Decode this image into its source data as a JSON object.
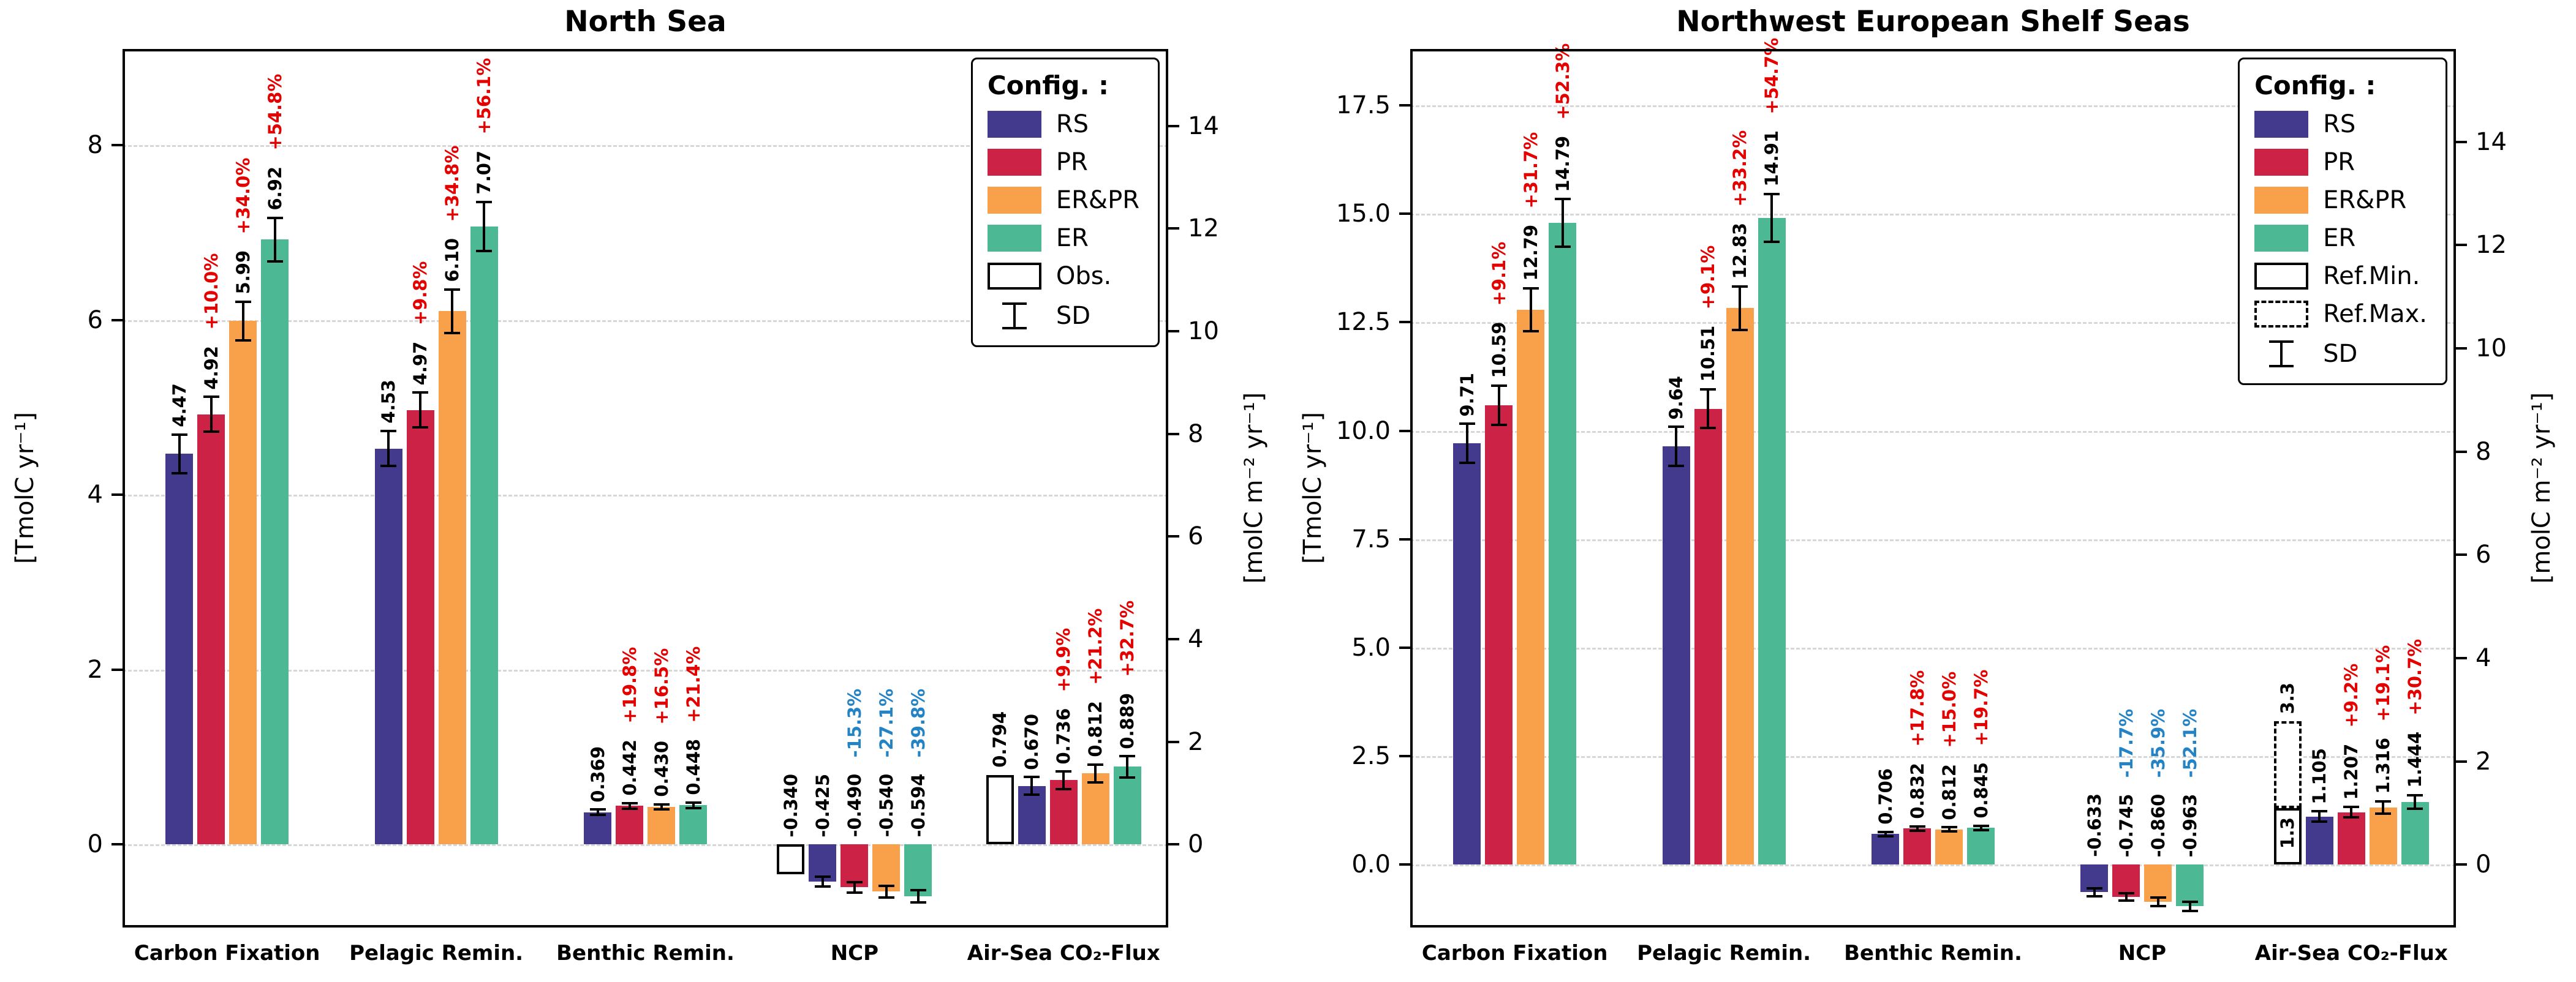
{
  "figure": {
    "background": "#ffffff",
    "colors": {
      "RS": "#433A8E",
      "PR": "#CB2245",
      "ER&PR": "#F9A04A",
      "ER": "#4CB894",
      "positive_pct": "#E50000",
      "negative_pct": "#2383C4",
      "grid": "#d7d7d7",
      "axis": "#000000"
    }
  },
  "chart_data": [
    {
      "type": "bar",
      "title": "North Sea",
      "ylabel_left": "[TmolC yr⁻¹]",
      "ylabel_right": "[molC m⁻² yr⁻¹]",
      "grid": "horizontal-dashed",
      "legend_position": "upper-right",
      "axis_left": {
        "min": -0.95,
        "max": 9.1,
        "ticks": [
          0,
          2,
          4,
          6,
          8
        ],
        "labels": [
          "0",
          "2",
          "4",
          "6",
          "8"
        ]
      },
      "axis_right": {
        "min": -1.618,
        "max": 15.5,
        "ticks": [
          0,
          2,
          4,
          6,
          8,
          10,
          12,
          14
        ],
        "labels": [
          "0",
          "2",
          "4",
          "6",
          "8",
          "10",
          "12",
          "14"
        ]
      },
      "legend": {
        "header": "Config. :",
        "entries": [
          {
            "swatch": "RS",
            "label": "RS"
          },
          {
            "swatch": "PR",
            "label": "PR"
          },
          {
            "swatch": "ER&PR",
            "label": "ER&PR"
          },
          {
            "swatch": "ER",
            "label": "ER"
          },
          {
            "swatch": "outline-solid",
            "label": "Obs."
          },
          {
            "swatch": "sd",
            "label": "SD"
          }
        ]
      },
      "groups": [
        {
          "category": "Carbon Fixation",
          "bars": [
            {
              "config": "RS",
              "value": 4.47,
              "label": "4.47",
              "sd": 0.22
            },
            {
              "config": "PR",
              "value": 4.92,
              "label": "4.92",
              "sd": 0.2,
              "pct": "+10.0%"
            },
            {
              "config": "ER&PR",
              "value": 5.99,
              "label": "5.99",
              "sd": 0.22,
              "pct": "+34.0%"
            },
            {
              "config": "ER",
              "value": 6.92,
              "label": "6.92",
              "sd": 0.25,
              "pct": "+54.8%"
            }
          ]
        },
        {
          "category": "Pelagic Remin.",
          "bars": [
            {
              "config": "RS",
              "value": 4.53,
              "label": "4.53",
              "sd": 0.2
            },
            {
              "config": "PR",
              "value": 4.97,
              "label": "4.97",
              "sd": 0.2,
              "pct": "+9.8%"
            },
            {
              "config": "ER&PR",
              "value": 6.1,
              "label": "6.10",
              "sd": 0.25,
              "pct": "+34.8%"
            },
            {
              "config": "ER",
              "value": 7.07,
              "label": "7.07",
              "sd": 0.28,
              "pct": "+56.1%"
            }
          ]
        },
        {
          "category": "Benthic Remin.",
          "bars": [
            {
              "config": "RS",
              "value": 0.369,
              "label": "0.369",
              "sd": 0.03
            },
            {
              "config": "PR",
              "value": 0.442,
              "label": "0.442",
              "sd": 0.03,
              "pct": "+19.8%"
            },
            {
              "config": "ER&PR",
              "value": 0.43,
              "label": "0.430",
              "sd": 0.03,
              "pct": "+16.5%"
            },
            {
              "config": "ER",
              "value": 0.448,
              "label": "0.448",
              "sd": 0.03,
              "pct": "+21.4%"
            }
          ]
        },
        {
          "category": "NCP",
          "bars": [
            {
              "config": "Obs",
              "value": -0.34,
              "label": "-0.340"
            },
            {
              "config": "RS",
              "value": -0.425,
              "label": "-0.425",
              "sd": 0.055
            },
            {
              "config": "PR",
              "value": -0.49,
              "label": "-0.490",
              "sd": 0.06,
              "pct": "-15.3%"
            },
            {
              "config": "ER&PR",
              "value": -0.54,
              "label": "-0.540",
              "sd": 0.065,
              "pct": "-27.1%"
            },
            {
              "config": "ER",
              "value": -0.594,
              "label": "-0.594",
              "sd": 0.07,
              "pct": "-39.8%"
            }
          ]
        },
        {
          "category": "Air-Sea CO₂-Flux",
          "bars": [
            {
              "config": "Obs",
              "value": 0.794,
              "label": "0.794"
            },
            {
              "config": "RS",
              "value": 0.67,
              "label": "0.670",
              "sd": 0.1
            },
            {
              "config": "PR",
              "value": 0.736,
              "label": "0.736",
              "sd": 0.1,
              "pct": "+9.9%"
            },
            {
              "config": "ER&PR",
              "value": 0.812,
              "label": "0.812",
              "sd": 0.1,
              "pct": "+21.2%"
            },
            {
              "config": "ER",
              "value": 0.889,
              "label": "0.889",
              "sd": 0.12,
              "pct": "+32.7%"
            }
          ]
        }
      ]
    },
    {
      "type": "bar",
      "title": "Northwest European Shelf Seas",
      "ylabel_left": "[TmolC yr⁻¹]",
      "ylabel_right": "[molC m⁻² yr⁻¹]",
      "grid": "horizontal-dashed",
      "legend_position": "upper-right",
      "axis_left": {
        "min": -1.45,
        "max": 18.8,
        "ticks": [
          0,
          2.5,
          5,
          7.5,
          10,
          12.5,
          15,
          17.5
        ],
        "labels": [
          "0.0",
          "2.5",
          "5.0",
          "7.5",
          "10.0",
          "12.5",
          "15.0",
          "17.5"
        ]
      },
      "axis_right": {
        "min": -1.219,
        "max": 15.8,
        "ticks": [
          0,
          2,
          4,
          6,
          8,
          10,
          12,
          14
        ],
        "labels": [
          "0",
          "2",
          "4",
          "6",
          "8",
          "10",
          "12",
          "14"
        ]
      },
      "legend": {
        "header": "Config. :",
        "entries": [
          {
            "swatch": "RS",
            "label": "RS"
          },
          {
            "swatch": "PR",
            "label": "PR"
          },
          {
            "swatch": "ER&PR",
            "label": "ER&PR"
          },
          {
            "swatch": "ER",
            "label": "ER"
          },
          {
            "swatch": "outline-solid",
            "label": "Ref.Min."
          },
          {
            "swatch": "outline-dashed",
            "label": "Ref.Max."
          },
          {
            "swatch": "sd",
            "label": "SD"
          }
        ]
      },
      "groups": [
        {
          "category": "Carbon Fixation",
          "bars": [
            {
              "config": "RS",
              "value": 9.71,
              "label": "9.71",
              "sd": 0.45
            },
            {
              "config": "PR",
              "value": 10.59,
              "label": "10.59",
              "sd": 0.45,
              "pct": "+9.1%"
            },
            {
              "config": "ER&PR",
              "value": 12.79,
              "label": "12.79",
              "sd": 0.5,
              "pct": "+31.7%"
            },
            {
              "config": "ER",
              "value": 14.79,
              "label": "14.79",
              "sd": 0.55,
              "pct": "+52.3%"
            }
          ]
        },
        {
          "category": "Pelagic Remin.",
          "bars": [
            {
              "config": "RS",
              "value": 9.64,
              "label": "9.64",
              "sd": 0.45
            },
            {
              "config": "PR",
              "value": 10.51,
              "label": "10.51",
              "sd": 0.45,
              "pct": "+9.1%"
            },
            {
              "config": "ER&PR",
              "value": 12.83,
              "label": "12.83",
              "sd": 0.5,
              "pct": "+33.2%"
            },
            {
              "config": "ER",
              "value": 14.91,
              "label": "14.91",
              "sd": 0.55,
              "pct": "+54.7%"
            }
          ]
        },
        {
          "category": "Benthic Remin.",
          "bars": [
            {
              "config": "RS",
              "value": 0.706,
              "label": "0.706",
              "sd": 0.05
            },
            {
              "config": "PR",
              "value": 0.832,
              "label": "0.832",
              "sd": 0.05,
              "pct": "+17.8%"
            },
            {
              "config": "ER&PR",
              "value": 0.812,
              "label": "0.812",
              "sd": 0.05,
              "pct": "+15.0%"
            },
            {
              "config": "ER",
              "value": 0.845,
              "label": "0.845",
              "sd": 0.05,
              "pct": "+19.7%"
            }
          ]
        },
        {
          "category": "NCP",
          "bars": [
            {
              "config": "RS",
              "value": -0.633,
              "label": "-0.633",
              "sd": 0.09
            },
            {
              "config": "PR",
              "value": -0.745,
              "label": "-0.745",
              "sd": 0.09,
              "pct": "-17.7%"
            },
            {
              "config": "ER&PR",
              "value": -0.86,
              "label": "-0.860",
              "sd": 0.1,
              "pct": "-35.9%"
            },
            {
              "config": "ER",
              "value": -0.963,
              "label": "-0.963",
              "sd": 0.1,
              "pct": "-52.1%"
            }
          ]
        },
        {
          "category": "Air-Sea CO₂-Flux",
          "bars": [
            {
              "config": "Ref",
              "ref_min": 1.3,
              "ref_max": 3.3,
              "label_min": "1.3",
              "label_max": "3.3"
            },
            {
              "config": "RS",
              "value": 1.105,
              "label": "1.105",
              "sd": 0.12
            },
            {
              "config": "PR",
              "value": 1.207,
              "label": "1.207",
              "sd": 0.12,
              "pct": "+9.2%"
            },
            {
              "config": "ER&PR",
              "value": 1.316,
              "label": "1.316",
              "sd": 0.14,
              "pct": "+19.1%"
            },
            {
              "config": "ER",
              "value": 1.444,
              "label": "1.444",
              "sd": 0.16,
              "pct": "+30.7%"
            }
          ]
        }
      ]
    }
  ]
}
